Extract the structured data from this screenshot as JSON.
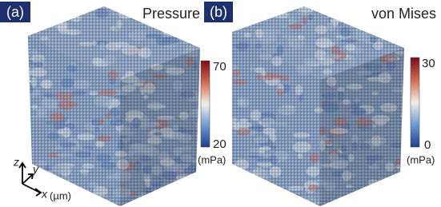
{
  "panels": [
    {
      "label": "(a)",
      "title": "Pressure",
      "colorbar": {
        "max": "70",
        "min": "20",
        "unit": "(mPa)"
      }
    },
    {
      "label": "(b)",
      "title": "von Mises",
      "colorbar": {
        "max": "30",
        "min": "0",
        "unit": "(mPa)"
      }
    }
  ],
  "axes": {
    "z": "z",
    "y": "y",
    "x": "x",
    "x_unit": "(µm)"
  }
}
